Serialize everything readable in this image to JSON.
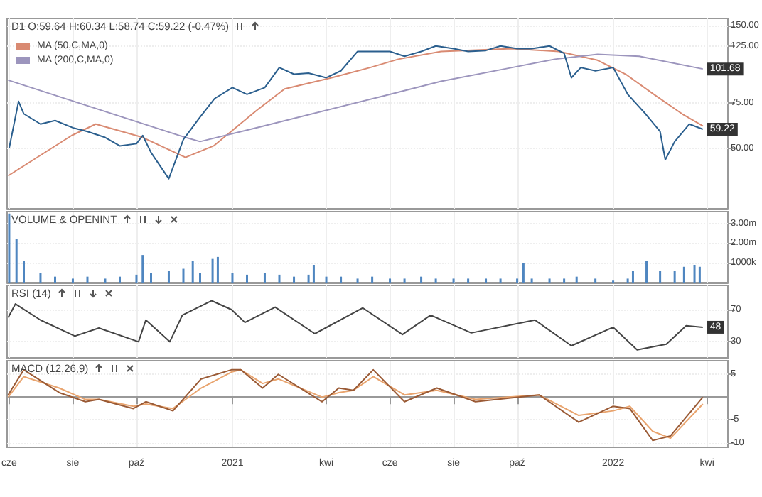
{
  "chart_data": [
    {
      "type": "line",
      "title": "D1 O:59.64 H:60.34 L:58.74 C:59.22 (-0.47%)",
      "log": "y",
      "grid": true,
      "legend": "top left",
      "tick_labels": "y",
      "xlim": [
        "2020-05-30",
        "2022-04-21"
      ],
      "xticks": [
        {
          "value": "2020-06",
          "label": null
        },
        {
          "value": "2020-08",
          "label": null
        },
        {
          "value": "2020-10",
          "label": null
        },
        {
          "value": "2021-01",
          "label": null
        },
        {
          "value": "2021-04",
          "label": null
        },
        {
          "value": "2021-06",
          "label": null
        },
        {
          "value": "2021-08",
          "label": null
        },
        {
          "value": "2021-10",
          "label": null
        },
        {
          "value": "2022-01",
          "label": null
        },
        {
          "value": "2022-04",
          "label": null
        }
      ],
      "ylim": [
        29,
        160
      ],
      "yticks": [
        {
          "value": 50,
          "label": "50.00"
        },
        {
          "value": 75,
          "label": "75.00"
        },
        {
          "value": 125,
          "label": "125.00"
        },
        {
          "value": 150,
          "label": "150.00"
        }
      ],
      "annotations": [
        {
          "text": "101.68",
          "x": "2022-03-28",
          "y": 101.68
        },
        {
          "text": "59.22",
          "x": "2022-03-28",
          "y": 59.22
        }
      ],
      "series": [
        {
          "name": "MA (50,C,MA,0)",
          "color": "#d98a72",
          "x": [
            "2020-05-31",
            "2020-07-31",
            "2020-08-23",
            "2020-10-07",
            "2020-11-17",
            "2020-12-14",
            "2021-01-24",
            "2021-02-20",
            "2021-04-06",
            "2021-05-13",
            "2021-06-09",
            "2021-07-20",
            "2021-09-26",
            "2021-11-10",
            "2021-12-17",
            "2022-01-13",
            "2022-02-09",
            "2022-03-08",
            "2022-03-28"
          ],
          "values": [
            39,
            56,
            62,
            55,
            46,
            51,
            70,
            85,
            94,
            103,
            111,
            119,
            122,
            119,
            110,
            97,
            81,
            68,
            61
          ]
        },
        {
          "name": "MA (200,C,MA,0)",
          "color": "#9c95bd",
          "x": [
            "2020-05-31",
            "2020-11-17",
            "2020-12-01",
            "2021-01-24",
            "2021-05-27",
            "2021-07-20",
            "2021-09-26",
            "2021-11-06",
            "2021-12-17",
            "2022-01-26",
            "2022-03-28"
          ],
          "values": [
            92,
            55,
            53,
            60,
            80,
            91,
            103,
            111,
            116,
            114,
            101.68
          ]
        },
        {
          "color": "#2b5f8e",
          "x": [
            "2020-06-01",
            "2020-06-10",
            "2020-06-15",
            "2020-07-01",
            "2020-07-15",
            "2020-08-01",
            "2020-08-15",
            "2020-09-01",
            "2020-09-15",
            "2020-10-01",
            "2020-10-07",
            "2020-10-15",
            "2020-11-01",
            "2020-11-15",
            "2020-12-01",
            "2020-12-15",
            "2021-01-01",
            "2021-01-15",
            "2021-02-01",
            "2021-02-15",
            "2021-03-01",
            "2021-03-15",
            "2021-04-01",
            "2021-04-15",
            "2021-05-01",
            "2021-05-15",
            "2021-06-01",
            "2021-06-15",
            "2021-07-01",
            "2021-07-15",
            "2021-08-01",
            "2021-08-15",
            "2021-09-01",
            "2021-09-15",
            "2021-10-01",
            "2021-10-15",
            "2021-11-01",
            "2021-11-15",
            "2021-11-22",
            "2021-12-01",
            "2021-12-15",
            "2022-01-01",
            "2022-01-15",
            "2022-02-01",
            "2022-02-15",
            "2022-02-20",
            "2022-03-01",
            "2022-03-15",
            "2022-03-28"
          ],
          "values": [
            50,
            76,
            68,
            62,
            64,
            60,
            58,
            55,
            51,
            52,
            56,
            48,
            38,
            54,
            66,
            78,
            86,
            81,
            86,
            103,
            97,
            98,
            94,
            100,
            119,
            119,
            119,
            114,
            119,
            125,
            122,
            119,
            120,
            125,
            122,
            122,
            125,
            117,
            94,
            103,
            100,
            103,
            81,
            68,
            58,
            45,
            53,
            62,
            59.22
          ]
        }
      ]
    },
    {
      "type": "bar",
      "title": "VOLUME & OPENINT",
      "grid": true,
      "tick_labels": "y",
      "color": "#4f86c0",
      "xlim": [
        "2020-05-30",
        "2022-04-21"
      ],
      "xticks": [
        {
          "value": "2020-06",
          "label": null
        },
        {
          "value": "2020-08",
          "label": null
        },
        {
          "value": "2020-10",
          "label": null
        },
        {
          "value": "2021-01",
          "label": null
        },
        {
          "value": "2021-04",
          "label": null
        },
        {
          "value": "2021-06",
          "label": null
        },
        {
          "value": "2021-08",
          "label": null
        },
        {
          "value": "2021-10",
          "label": null
        },
        {
          "value": "2022-01",
          "label": null
        },
        {
          "value": "2022-04",
          "label": null
        }
      ],
      "ylim": [
        0,
        3600000
      ],
      "yticks": [
        {
          "value": 1000000,
          "label": "1000k"
        },
        {
          "value": 2000000,
          "label": "2.00m"
        },
        {
          "value": 3000000,
          "label": "3.00m"
        }
      ],
      "x": [
        "2020-06-01",
        "2020-06-08",
        "2020-06-15",
        "2020-07-01",
        "2020-07-15",
        "2020-08-01",
        "2020-08-15",
        "2020-09-01",
        "2020-09-15",
        "2020-10-01",
        "2020-10-07",
        "2020-10-15",
        "2020-11-01",
        "2020-11-15",
        "2020-11-24",
        "2020-12-01",
        "2020-12-13",
        "2020-12-18",
        "2021-01-01",
        "2021-01-15",
        "2021-02-01",
        "2021-02-15",
        "2021-03-01",
        "2021-03-15",
        "2021-03-20",
        "2021-04-01",
        "2021-04-15",
        "2021-05-01",
        "2021-05-15",
        "2021-06-01",
        "2021-06-15",
        "2021-07-01",
        "2021-07-15",
        "2021-08-01",
        "2021-08-15",
        "2021-09-01",
        "2021-09-15",
        "2021-10-01",
        "2021-10-07",
        "2021-10-15",
        "2021-11-01",
        "2021-11-15",
        "2021-11-27",
        "2021-12-15",
        "2022-01-01",
        "2022-01-15",
        "2022-01-20",
        "2022-02-02",
        "2022-02-15",
        "2022-03-01",
        "2022-03-10",
        "2022-03-20",
        "2022-03-25"
      ],
      "values": [
        3500000,
        2200000,
        1100000,
        500000,
        300000,
        200000,
        300000,
        200000,
        300000,
        400000,
        1400000,
        500000,
        600000,
        700000,
        1100000,
        500000,
        1200000,
        1300000,
        500000,
        400000,
        500000,
        400000,
        300000,
        400000,
        900000,
        300000,
        300000,
        200000,
        300000,
        200000,
        200000,
        300000,
        200000,
        200000,
        200000,
        200000,
        200000,
        200000,
        1000000,
        200000,
        200000,
        200000,
        300000,
        200000,
        100000,
        200000,
        600000,
        1100000,
        600000,
        600000,
        800000,
        900000,
        800000
      ]
    },
    {
      "type": "line",
      "title": "RSI (14)",
      "grid": true,
      "tick_labels": "y",
      "color": "#444444",
      "xlim": [
        "2020-05-30",
        "2022-04-21"
      ],
      "xticks": [
        {
          "value": "2020-06",
          "label": null
        },
        {
          "value": "2020-08",
          "label": null
        },
        {
          "value": "2020-10",
          "label": null
        },
        {
          "value": "2021-01",
          "label": null
        },
        {
          "value": "2021-04",
          "label": null
        },
        {
          "value": "2021-06",
          "label": null
        },
        {
          "value": "2021-08",
          "label": null
        },
        {
          "value": "2021-10",
          "label": null
        },
        {
          "value": "2022-01",
          "label": null
        },
        {
          "value": "2022-04",
          "label": null
        }
      ],
      "ylim": [
        10,
        100
      ],
      "yticks": [
        30,
        70
      ],
      "annotations": [
        {
          "text": "48",
          "x": "2022-03-28",
          "y": 48
        }
      ],
      "x": [
        "2020-05-31",
        "2020-06-07",
        "2020-07-01",
        "2020-08-03",
        "2020-08-26",
        "2020-10-03",
        "2020-10-10",
        "2020-11-02",
        "2020-11-14",
        "2020-12-12",
        "2020-12-31",
        "2021-01-13",
        "2021-02-11",
        "2021-03-21",
        "2021-05-06",
        "2021-06-13",
        "2021-07-10",
        "2021-08-18",
        "2021-10-18",
        "2021-11-22",
        "2022-01-01",
        "2022-01-24",
        "2022-02-21",
        "2022-03-12",
        "2022-03-28"
      ],
      "values": [
        60,
        77,
        57,
        37,
        47,
        30,
        57,
        30,
        63,
        81,
        70,
        54,
        73,
        40,
        72,
        39,
        63,
        41,
        57,
        25,
        48,
        20,
        27,
        50,
        48
      ]
    },
    {
      "type": "line",
      "title": "MACD (12,26,9)",
      "grid": true,
      "xlim": [
        "2020-05-30",
        "2022-04-21"
      ],
      "xticks": [
        {
          "value": "2020-06",
          "label": "cze"
        },
        {
          "value": "2020-08",
          "label": "sie"
        },
        {
          "value": "2020-10",
          "label": "paź"
        },
        {
          "value": "2021-01",
          "label": "2021"
        },
        {
          "value": "2021-04",
          "label": "kwi"
        },
        {
          "value": "2021-06",
          "label": "cze"
        },
        {
          "value": "2021-08",
          "label": "sie"
        },
        {
          "value": "2021-10",
          "label": "paź"
        },
        {
          "value": "2022-01",
          "label": "2022"
        },
        {
          "value": "2022-04",
          "label": "kwi"
        }
      ],
      "ylim": [
        -11,
        8
      ],
      "yticks": [
        -10,
        -5,
        5
      ],
      "x": [
        "2020-05-31",
        "2020-06-15",
        "2020-07-19",
        "2020-08-13",
        "2020-08-26",
        "2020-09-28",
        "2020-10-10",
        "2020-11-05",
        "2020-12-02",
        "2020-12-31",
        "2021-01-09",
        "2021-01-30",
        "2021-02-14",
        "2021-03-28",
        "2021-04-13",
        "2021-04-27",
        "2021-05-16",
        "2021-06-15",
        "2021-07-16",
        "2021-08-22",
        "2021-10-22",
        "2021-11-29",
        "2022-01-01",
        "2022-01-17",
        "2022-02-08",
        "2022-02-25",
        "2022-03-28"
      ],
      "series": [
        {
          "color": "#e9a46e",
          "values": [
            0,
            4.5,
            2,
            -0.5,
            -0.5,
            -2,
            -1.5,
            -2.5,
            2,
            5.5,
            6,
            3,
            4,
            0,
            1,
            1.5,
            4.5,
            0.5,
            1.5,
            -0.5,
            0.5,
            -4,
            -3,
            -2,
            -7.5,
            -9,
            -1.5
          ]
        },
        {
          "color": "#9a5a35",
          "values": [
            0.5,
            6,
            1,
            -1,
            -0.5,
            -2.5,
            -1,
            -3,
            4,
            6,
            6,
            2,
            5,
            -1,
            2,
            1.5,
            6,
            -1,
            2,
            -1,
            0.5,
            -5.5,
            -2,
            -2.5,
            -9.5,
            -8.5,
            0
          ]
        }
      ]
    }
  ]
}
